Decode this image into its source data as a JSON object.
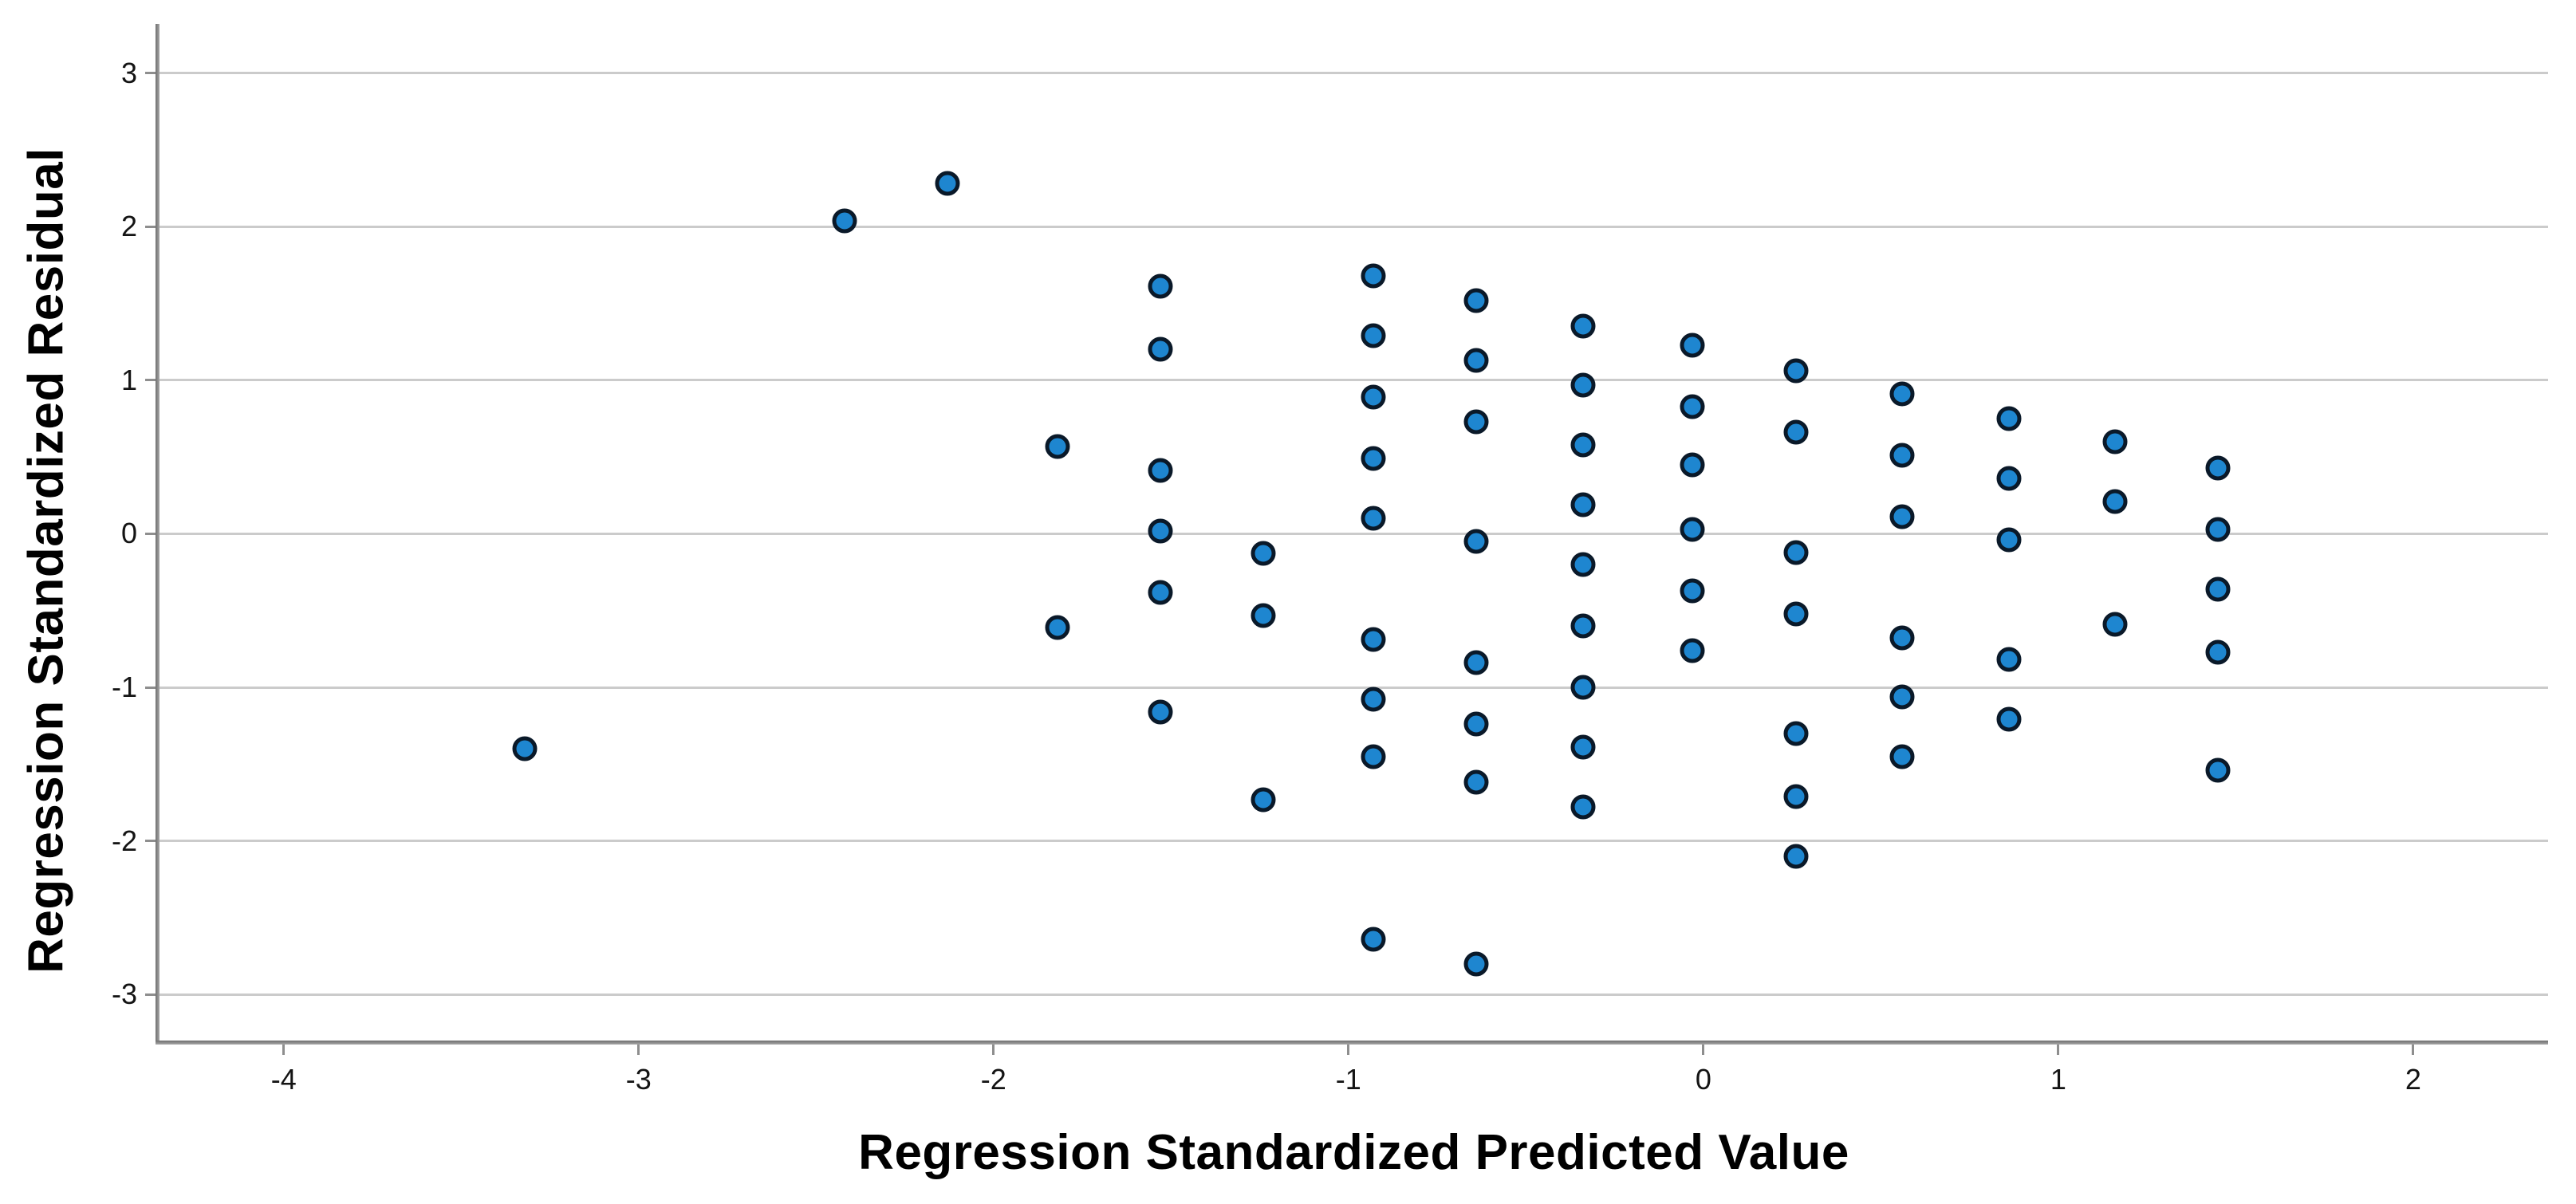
{
  "chart_data": {
    "type": "scatter",
    "title": "",
    "xlabel": "Regression Standardized Predicted Value",
    "ylabel": "Regression Standardized Residual",
    "x_ticks": [
      -4,
      -3,
      -2,
      -1,
      0,
      1,
      2
    ],
    "y_ticks": [
      3,
      2,
      1,
      0,
      -1,
      -2,
      -3
    ],
    "xlim": [
      -4.35,
      2.38
    ],
    "ylim": [
      -3.3,
      3.32
    ],
    "grid": "horizontal-only",
    "legend": "none",
    "points": [
      [
        -3.32,
        -1.4
      ],
      [
        -2.42,
        2.04
      ],
      [
        -2.13,
        2.28
      ],
      [
        -1.82,
        0.57
      ],
      [
        -1.82,
        -0.61
      ],
      [
        -1.53,
        1.61
      ],
      [
        -1.53,
        1.2
      ],
      [
        -1.53,
        0.41
      ],
      [
        -1.53,
        0.02
      ],
      [
        -1.53,
        -0.38
      ],
      [
        -1.53,
        -1.16
      ],
      [
        -1.24,
        -0.13
      ],
      [
        -1.24,
        -0.53
      ],
      [
        -1.24,
        -1.73
      ],
      [
        -0.93,
        1.68
      ],
      [
        -0.93,
        1.29
      ],
      [
        -0.93,
        0.89
      ],
      [
        -0.93,
        0.49
      ],
      [
        -0.93,
        0.1
      ],
      [
        -0.93,
        -0.69
      ],
      [
        -0.93,
        -1.08
      ],
      [
        -0.93,
        -1.45
      ],
      [
        -0.93,
        -2.64
      ],
      [
        -0.64,
        1.52
      ],
      [
        -0.64,
        1.13
      ],
      [
        -0.64,
        0.73
      ],
      [
        -0.64,
        -0.05
      ],
      [
        -0.64,
        -0.84
      ],
      [
        -0.64,
        -1.24
      ],
      [
        -0.64,
        -1.62
      ],
      [
        -0.64,
        -2.8
      ],
      [
        -0.34,
        1.35
      ],
      [
        -0.34,
        0.97
      ],
      [
        -0.34,
        0.58
      ],
      [
        -0.34,
        0.19
      ],
      [
        -0.34,
        -0.2
      ],
      [
        -0.34,
        -0.6
      ],
      [
        -0.34,
        -1.0
      ],
      [
        -0.34,
        -1.39
      ],
      [
        -0.34,
        -1.78
      ],
      [
        -0.03,
        1.23
      ],
      [
        -0.03,
        0.83
      ],
      [
        -0.03,
        0.45
      ],
      [
        -0.03,
        0.03
      ],
      [
        -0.03,
        -0.37
      ],
      [
        -0.03,
        -0.76
      ],
      [
        0.26,
        1.06
      ],
      [
        0.26,
        0.66
      ],
      [
        0.26,
        -0.12
      ],
      [
        0.26,
        -0.52
      ],
      [
        0.26,
        -1.3
      ],
      [
        0.26,
        -1.71
      ],
      [
        0.26,
        -2.1
      ],
      [
        0.56,
        0.91
      ],
      [
        0.56,
        0.51
      ],
      [
        0.56,
        0.11
      ],
      [
        0.56,
        -0.68
      ],
      [
        0.56,
        -1.06
      ],
      [
        0.56,
        -1.45
      ],
      [
        0.86,
        0.75
      ],
      [
        0.86,
        0.36
      ],
      [
        0.86,
        -0.04
      ],
      [
        0.86,
        -0.82
      ],
      [
        0.86,
        -1.21
      ],
      [
        1.16,
        0.6
      ],
      [
        1.16,
        0.21
      ],
      [
        1.16,
        -0.59
      ],
      [
        1.45,
        0.43
      ],
      [
        1.45,
        0.03
      ],
      [
        1.45,
        -0.36
      ],
      [
        1.45,
        -0.77
      ],
      [
        1.45,
        -1.54
      ]
    ]
  },
  "colors": {
    "background": "#ffffff",
    "dot_fill": "#1e86d0",
    "dot_border": "#0a1929",
    "gridline": "#cbcbcb",
    "axis_line": "#8e8e8e",
    "text": "#141414",
    "title_text": "#000000"
  }
}
